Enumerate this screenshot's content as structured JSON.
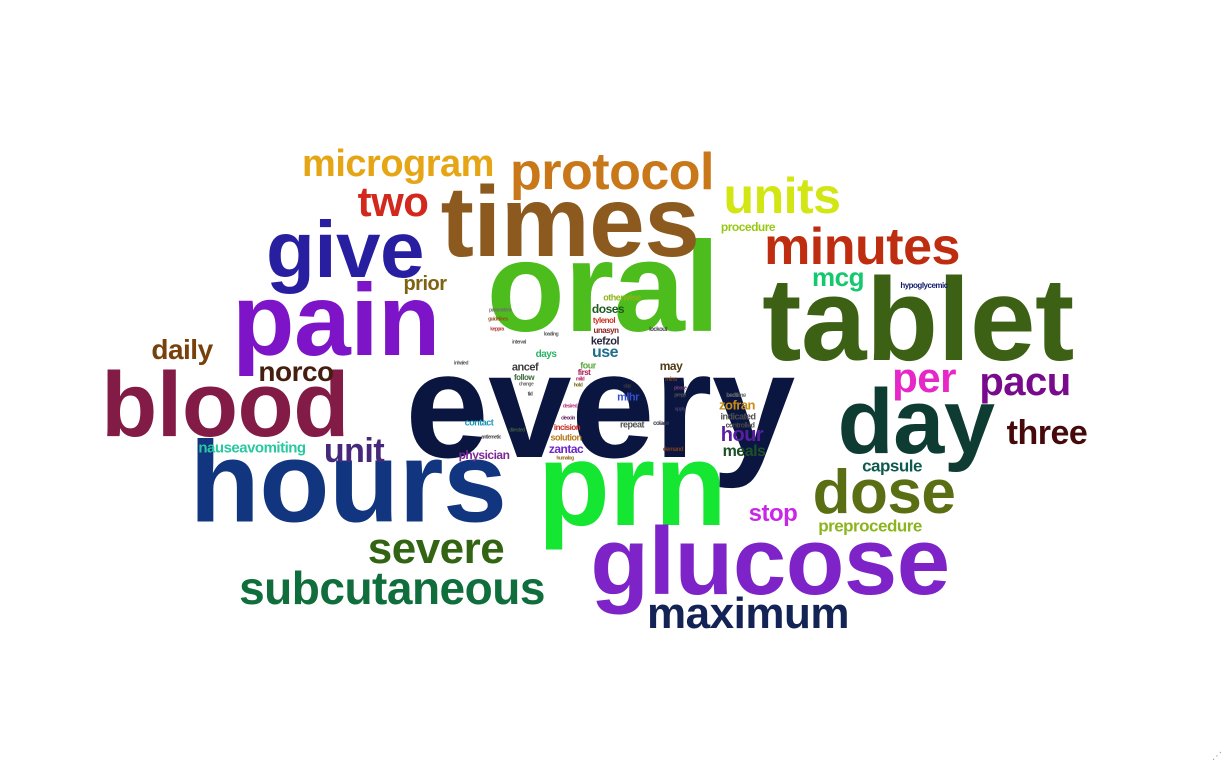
{
  "cloud": {
    "words": [
      {
        "text": "every",
        "color": "#0b1640"
      },
      {
        "text": "oral",
        "color": "#4cbd1c"
      },
      {
        "text": "prn",
        "color": "#14e632"
      },
      {
        "text": "hours",
        "color": "#12357f"
      },
      {
        "text": "tablet",
        "color": "#3c6114"
      },
      {
        "text": "pain",
        "color": "#7d14c8"
      },
      {
        "text": "times",
        "color": "#8c5a1e"
      },
      {
        "text": "glucose",
        "color": "#7d23c8"
      },
      {
        "text": "blood",
        "color": "#821c46"
      },
      {
        "text": "day",
        "color": "#0f3c32"
      },
      {
        "text": "give",
        "color": "#281ea0"
      },
      {
        "text": "dose",
        "color": "#5a6e14"
      },
      {
        "text": "protocol",
        "color": "#c87819"
      },
      {
        "text": "minutes",
        "color": "#be2d0f"
      },
      {
        "text": "units",
        "color": "#d2e614"
      },
      {
        "text": "subcutaneous",
        "color": "#0f6e3c"
      },
      {
        "text": "maximum",
        "color": "#142355"
      },
      {
        "text": "severe",
        "color": "#326414"
      },
      {
        "text": "microgram",
        "color": "#e6a514"
      },
      {
        "text": "two",
        "color": "#d2281e"
      },
      {
        "text": "pacu",
        "color": "#780a8c"
      },
      {
        "text": "per",
        "color": "#e628c8"
      },
      {
        "text": "three",
        "color": "#460a0a"
      },
      {
        "text": "unit",
        "color": "#46287d"
      },
      {
        "text": "norco",
        "color": "#461e0f"
      },
      {
        "text": "daily",
        "color": "#78400a"
      },
      {
        "text": "mcg",
        "color": "#14c86e"
      },
      {
        "text": "stop",
        "color": "#c828e6"
      },
      {
        "text": "preprocedure",
        "color": "#8cb41e"
      },
      {
        "text": "capsule",
        "color": "#0f5a50"
      },
      {
        "text": "nauseavomiting",
        "color": "#28c8a0"
      },
      {
        "text": "prior",
        "color": "#7d6414"
      },
      {
        "text": "hour",
        "color": "#5a1ea0"
      },
      {
        "text": "meals",
        "color": "#1e5028"
      },
      {
        "text": "use",
        "color": "#1e6e8c"
      },
      {
        "text": "physician",
        "color": "#7d2896"
      },
      {
        "text": "zantac",
        "color": "#6e28c8"
      },
      {
        "text": "zofran",
        "color": "#c88c14"
      },
      {
        "text": "procedure",
        "color": "#96c814"
      },
      {
        "text": "may",
        "color": "#503c14"
      },
      {
        "text": "doses",
        "color": "#1e5a1e"
      },
      {
        "text": "ancef",
        "color": "#3c3c3c"
      },
      {
        "text": "kefzol",
        "color": "#28283c"
      },
      {
        "text": "days",
        "color": "#28b464"
      },
      {
        "text": "mlhr",
        "color": "#3250c8"
      },
      {
        "text": "repeat",
        "color": "#505050"
      },
      {
        "text": "contact",
        "color": "#1e96b4"
      },
      {
        "text": "solution",
        "color": "#b4781e"
      },
      {
        "text": "incision",
        "color": "#c8281e"
      },
      {
        "text": "indicated",
        "color": "#505050"
      },
      {
        "text": "otherwise",
        "color": "#8cb41e"
      },
      {
        "text": "four",
        "color": "#5aaa3c"
      },
      {
        "text": "hypoglycemic",
        "color": "#141e6e"
      },
      {
        "text": "follow",
        "color": "#3c6e3c"
      },
      {
        "text": "first",
        "color": "#aa1e5a"
      },
      {
        "text": "tylenol",
        "color": "#c8321e"
      },
      {
        "text": "unasyn",
        "color": "#8c1e1e"
      },
      {
        "text": "controlled",
        "color": "#464646"
      },
      {
        "text": "bedtime",
        "color": "#6e6e6e"
      },
      {
        "text": "demand",
        "color": "#783c1e"
      },
      {
        "text": "lockout",
        "color": "#464646"
      },
      {
        "text": "parameters",
        "color": "#6e6e6e"
      },
      {
        "text": "guidelines",
        "color": "#8c5a1e"
      },
      {
        "text": "keppra",
        "color": "#b43c3c"
      },
      {
        "text": "inhaled",
        "color": "#5a5a5a"
      },
      {
        "text": "mins",
        "color": "#6e3c1e"
      },
      {
        "text": "colace",
        "color": "#3c3c50"
      },
      {
        "text": "antiemetic",
        "color": "#505050"
      },
      {
        "text": "directed",
        "color": "#3c5a3c"
      },
      {
        "text": "interval",
        "color": "#5a5a5a"
      },
      {
        "text": "change",
        "color": "#6e6e6e"
      },
      {
        "text": "desired",
        "color": "#b43278"
      },
      {
        "text": "humalog",
        "color": "#8c6e1e"
      },
      {
        "text": "apply",
        "color": "#3c3c6e"
      },
      {
        "text": "please",
        "color": "#6e3c6e"
      },
      {
        "text": "prepp",
        "color": "#505050"
      },
      {
        "text": "loading",
        "color": "#5a5a5a"
      },
      {
        "text": "cleocin",
        "color": "#5a1e5a"
      },
      {
        "text": "sbp",
        "color": "#3c3c3c"
      },
      {
        "text": "hold",
        "color": "#6e6e1e"
      },
      {
        "text": "mild",
        "color": "#b41e5a"
      },
      {
        "text": "tid",
        "color": "#3c3c3c"
      }
    ]
  }
}
